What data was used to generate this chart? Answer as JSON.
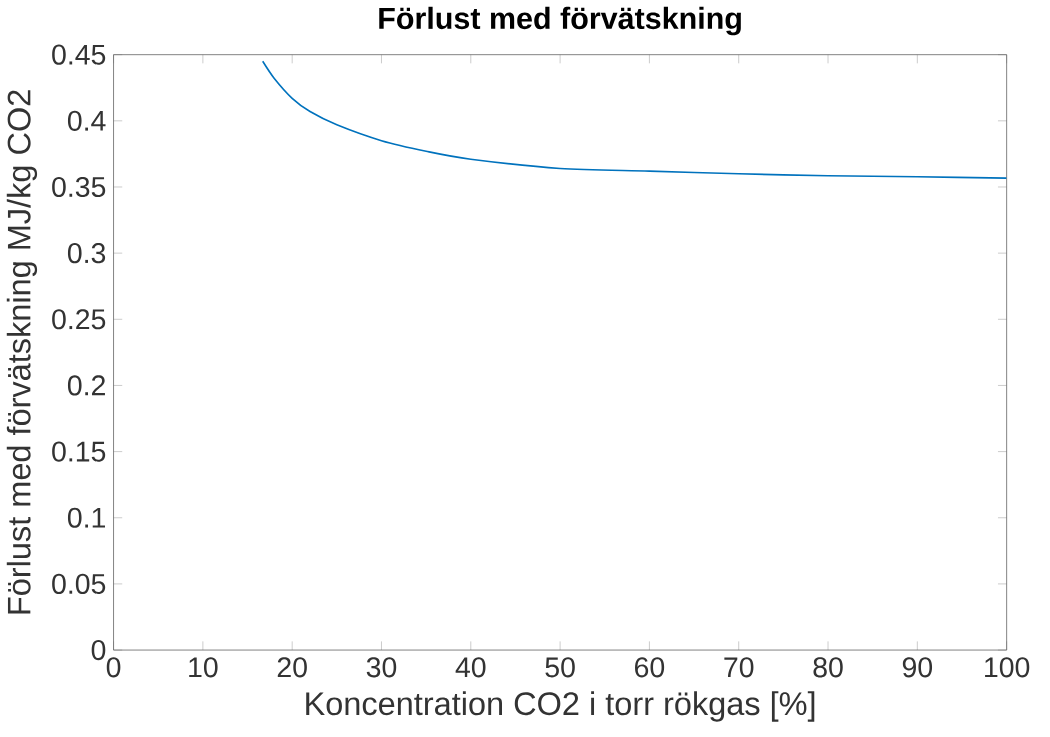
{
  "chart_data": {
    "type": "line",
    "title": "Förlust med förvätskning",
    "xlabel": "Koncentration CO2 i torr rökgas [%]",
    "ylabel": "Förlust med förvätskning MJ/kg CO2",
    "x": [
      16.7,
      18,
      20,
      22,
      25,
      30,
      35,
      40,
      50,
      60,
      70,
      80,
      90,
      100
    ],
    "series": [
      {
        "color": "#0072bd",
        "values": [
          0.445,
          0.432,
          0.417,
          0.407,
          0.397,
          0.385,
          0.377,
          0.371,
          0.364,
          0.362,
          0.36,
          0.3585,
          0.3577,
          0.3567
        ]
      }
    ],
    "xlim": [
      0,
      100
    ],
    "ylim": [
      0,
      0.45
    ],
    "xticks": [
      0,
      10,
      20,
      30,
      40,
      50,
      60,
      70,
      80,
      90,
      100
    ],
    "yticks": [
      0,
      0.05,
      0.1,
      0.15,
      0.2,
      0.25,
      0.3,
      0.35,
      0.4,
      0.45
    ],
    "grid": false,
    "marker": "none",
    "line_style": "solid"
  }
}
